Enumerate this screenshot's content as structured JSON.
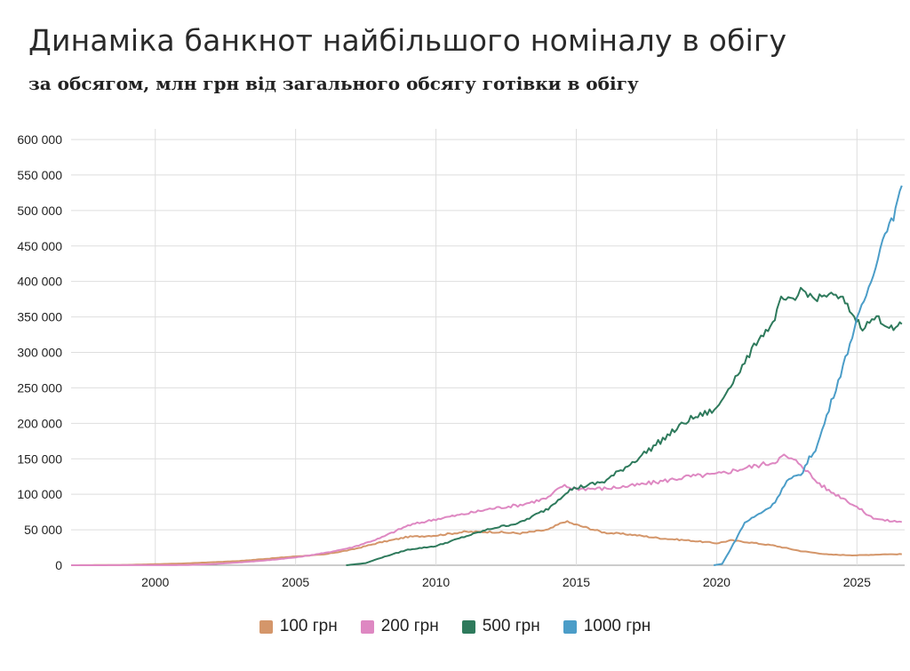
{
  "chart_data": {
    "type": "line",
    "title": "Динаміка банкнот найбільшого номіналу в обігу",
    "subtitle": "за обсягом, млн грн від загального обсягу готівки в обігу",
    "xlabel": "",
    "ylabel": "",
    "xlim": [
      1997.0,
      2026.7
    ],
    "ylim": [
      0,
      600000
    ],
    "x_ticks": [
      2000,
      2005,
      2010,
      2015,
      2020,
      2025
    ],
    "y_ticks": [
      0,
      50000,
      100000,
      150000,
      200000,
      250000,
      300000,
      350000,
      400000,
      450000,
      500000,
      550000,
      600000
    ],
    "y_tick_labels": [
      "0",
      "50 000",
      "100 000",
      "150 000",
      "200 000",
      "250 000",
      "300 000",
      "350 000",
      "400 000",
      "450 000",
      "500 000",
      "550 000",
      "600 000"
    ],
    "grid": true,
    "legend_position": "bottom",
    "series": [
      {
        "name": "100 грн",
        "color": "#d4966a",
        "points": [
          [
            1997.0,
            0
          ],
          [
            1999,
            500
          ],
          [
            2001,
            2500
          ],
          [
            2003,
            6000
          ],
          [
            2005,
            12500
          ],
          [
            2006,
            15000
          ],
          [
            2007,
            22000
          ],
          [
            2008,
            32000
          ],
          [
            2009,
            40000
          ],
          [
            2010,
            42000
          ],
          [
            2011,
            47000
          ],
          [
            2012,
            47000
          ],
          [
            2013,
            45000
          ],
          [
            2014,
            50000
          ],
          [
            2014.6,
            62000
          ],
          [
            2015,
            57000
          ],
          [
            2016,
            46000
          ],
          [
            2017,
            43000
          ],
          [
            2018,
            38000
          ],
          [
            2019,
            35000
          ],
          [
            2020,
            31000
          ],
          [
            2020.5,
            35000
          ],
          [
            2021,
            33000
          ],
          [
            2022,
            28000
          ],
          [
            2023,
            20000
          ],
          [
            2024,
            15000
          ],
          [
            2025,
            14000
          ],
          [
            2026,
            15500
          ],
          [
            2026.6,
            15500
          ]
        ]
      },
      {
        "name": "200 грн",
        "color": "#de88c2",
        "points": [
          [
            1997.0,
            0
          ],
          [
            2001,
            200
          ],
          [
            2002,
            1500
          ],
          [
            2003,
            4000
          ],
          [
            2004,
            7000
          ],
          [
            2005,
            11000
          ],
          [
            2006,
            17000
          ],
          [
            2007,
            25000
          ],
          [
            2008,
            38000
          ],
          [
            2009,
            56000
          ],
          [
            2010,
            65000
          ],
          [
            2011,
            72000
          ],
          [
            2012,
            80000
          ],
          [
            2013,
            85000
          ],
          [
            2014,
            95000
          ],
          [
            2014.5,
            112000
          ],
          [
            2015,
            108000
          ],
          [
            2016,
            108000
          ],
          [
            2017,
            112000
          ],
          [
            2018,
            118000
          ],
          [
            2019,
            125000
          ],
          [
            2020,
            128000
          ],
          [
            2021,
            137000
          ],
          [
            2022,
            145000
          ],
          [
            2022.4,
            154000
          ],
          [
            2023,
            143000
          ],
          [
            2023.5,
            120000
          ],
          [
            2024,
            105000
          ],
          [
            2024.5,
            95000
          ],
          [
            2025,
            82000
          ],
          [
            2025.5,
            68000
          ],
          [
            2026,
            63000
          ],
          [
            2026.6,
            61000
          ]
        ]
      },
      {
        "name": "500 грн",
        "color": "#2e7a5c",
        "points": [
          [
            2006.8,
            0
          ],
          [
            2007.5,
            3000
          ],
          [
            2008,
            10000
          ],
          [
            2009,
            22000
          ],
          [
            2010,
            27000
          ],
          [
            2011,
            40000
          ],
          [
            2012,
            52000
          ],
          [
            2013,
            60000
          ],
          [
            2014,
            80000
          ],
          [
            2014.7,
            105000
          ],
          [
            2015,
            109000
          ],
          [
            2016,
            118000
          ],
          [
            2017,
            145000
          ],
          [
            2018,
            175000
          ],
          [
            2019,
            205000
          ],
          [
            2020,
            220000
          ],
          [
            2020.5,
            255000
          ],
          [
            2021,
            285000
          ],
          [
            2021.5,
            320000
          ],
          [
            2022,
            340000
          ],
          [
            2022.3,
            375000
          ],
          [
            2022.8,
            372000
          ],
          [
            2023,
            390000
          ],
          [
            2023.5,
            375000
          ],
          [
            2024,
            382000
          ],
          [
            2024.5,
            375000
          ],
          [
            2024.9,
            350000
          ],
          [
            2025.2,
            335000
          ],
          [
            2025.7,
            350000
          ],
          [
            2026,
            340000
          ],
          [
            2026.3,
            332000
          ],
          [
            2026.6,
            340000
          ]
        ]
      },
      {
        "name": "1000 грн",
        "color": "#4b9dc8",
        "points": [
          [
            2019.9,
            0
          ],
          [
            2020.2,
            2000
          ],
          [
            2020.6,
            30000
          ],
          [
            2021,
            60000
          ],
          [
            2021.5,
            72000
          ],
          [
            2022,
            85000
          ],
          [
            2022.5,
            118000
          ],
          [
            2023,
            128000
          ],
          [
            2023.3,
            150000
          ],
          [
            2023.6,
            170000
          ],
          [
            2024,
            220000
          ],
          [
            2024.5,
            280000
          ],
          [
            2025,
            345000
          ],
          [
            2025.5,
            400000
          ],
          [
            2026,
            470000
          ],
          [
            2026.3,
            490000
          ],
          [
            2026.6,
            535000
          ]
        ]
      }
    ]
  }
}
